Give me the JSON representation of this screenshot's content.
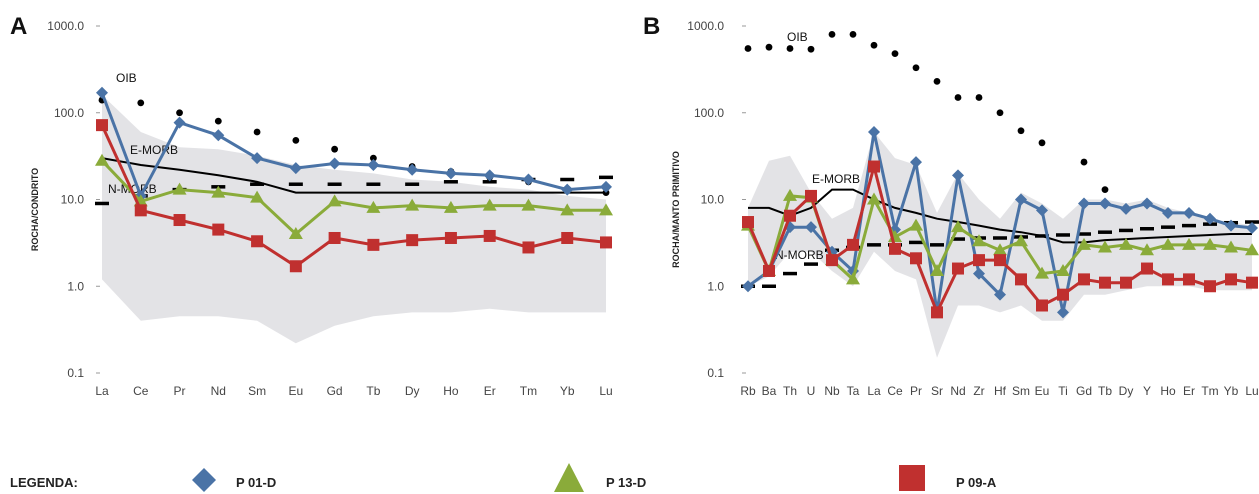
{
  "legend": {
    "title": "LEGENDA:",
    "entries": [
      {
        "label": "P 01-D",
        "color": "#4a73a6",
        "marker": "diamond"
      },
      {
        "label": "P 13-D",
        "color": "#8aab3a",
        "marker": "triangle"
      },
      {
        "label": "P 09-A",
        "color": "#c0302f",
        "marker": "square"
      }
    ]
  },
  "chart_data": [
    {
      "panel": "A",
      "type": "line",
      "ylabel": "ROCHA/CONDRITO",
      "yscale": "log",
      "ylim": [
        0.1,
        1000
      ],
      "yticks": [
        "1000.0",
        "100.0",
        "10.0",
        "1.0",
        "0.1"
      ],
      "categories": [
        "La",
        "Ce",
        "Pr",
        "Nd",
        "Sm",
        "Eu",
        "Gd",
        "Tb",
        "Dy",
        "Ho",
        "Er",
        "Tm",
        "Yb",
        "Lu"
      ],
      "series": [
        {
          "name": "P 01-D",
          "color": "#4a73a6",
          "marker": "diamond",
          "values": [
            170,
            11,
            77,
            55,
            30,
            23,
            26,
            25,
            22,
            20,
            19,
            17,
            13,
            14
          ]
        },
        {
          "name": "P 13-D",
          "color": "#8aab3a",
          "marker": "triangle",
          "values": [
            28,
            9.5,
            13,
            12,
            10.5,
            4,
            9.5,
            8,
            8.5,
            8,
            8.5,
            8.5,
            7.5,
            7.5
          ]
        },
        {
          "name": "P 09-A",
          "color": "#c0302f",
          "marker": "square",
          "values": [
            72,
            7.5,
            5.8,
            4.5,
            3.3,
            1.7,
            3.6,
            3,
            3.4,
            3.6,
            3.8,
            2.8,
            3.6,
            3.2
          ]
        }
      ],
      "reference": [
        {
          "name": "OIB",
          "style": "dots",
          "values": [
            140,
            130,
            100,
            80,
            60,
            48,
            38,
            30,
            24,
            21,
            18,
            16,
            13,
            12
          ]
        },
        {
          "name": "E-MORB",
          "style": "solid",
          "values": [
            30,
            25,
            22,
            19,
            16,
            12,
            12,
            12,
            12,
            12,
            12,
            12,
            12,
            12
          ]
        },
        {
          "name": "N-MORB",
          "style": "dashes",
          "values": [
            9,
            11,
            13,
            14,
            15,
            15,
            15,
            15,
            15,
            16,
            16,
            17,
            17,
            18
          ]
        }
      ],
      "envelope": {
        "upper": [
          160,
          60,
          40,
          38,
          32,
          25,
          22,
          20,
          17,
          16,
          14,
          13,
          11,
          10
        ],
        "lower": [
          1.2,
          0.4,
          0.45,
          0.45,
          0.4,
          0.22,
          0.35,
          0.45,
          0.5,
          0.5,
          0.55,
          0.5,
          0.5,
          0.5
        ]
      }
    },
    {
      "panel": "B",
      "type": "line",
      "ylabel": "ROCHA/MANTO PRIMITIVO",
      "yscale": "log",
      "ylim": [
        0.1,
        1000
      ],
      "yticks": [
        "1000.0",
        "100.0",
        "10.0",
        "1.0",
        "0.1"
      ],
      "categories": [
        "Rb",
        "Ba",
        "Th",
        "U",
        "Nb",
        "Ta",
        "La",
        "Ce",
        "Pr",
        "Sr",
        "Nd",
        "Zr",
        "Hf",
        "Sm",
        "Eu",
        "Ti",
        "Gd",
        "Tb",
        "Dy",
        "Y",
        "Ho",
        "Er",
        "Tm",
        "Yb",
        "Lu"
      ],
      "series": [
        {
          "name": "P 01-D",
          "color": "#4a73a6",
          "marker": "diamond",
          "values": [
            1,
            1.5,
            4.8,
            4.8,
            2.5,
            1.5,
            60,
            4.5,
            27,
            0.5,
            19,
            1.4,
            0.8,
            10,
            7.5,
            0.5,
            9,
            9,
            7.8,
            9,
            7,
            7,
            6,
            5,
            4.7
          ]
        },
        {
          "name": "P 13-D",
          "color": "#8aab3a",
          "marker": "triangle",
          "values": [
            5,
            1.5,
            11,
            10.5,
            2,
            1.2,
            10,
            3.7,
            5,
            1.5,
            4.8,
            3.3,
            2.6,
            3.3,
            1.4,
            1.5,
            3,
            2.8,
            3,
            2.6,
            3,
            3,
            3,
            2.8,
            2.6
          ]
        },
        {
          "name": "P 09-A",
          "color": "#c0302f",
          "marker": "square",
          "values": [
            5.5,
            1.5,
            6.5,
            11,
            2,
            3,
            24,
            2.7,
            2.1,
            0.5,
            1.6,
            2,
            2,
            1.2,
            0.6,
            0.8,
            1.2,
            1.1,
            1.1,
            1.6,
            1.2,
            1.2,
            1,
            1.2,
            1.1
          ]
        }
      ],
      "reference": [
        {
          "name": "OIB",
          "style": "dots",
          "values": [
            550,
            570,
            550,
            540,
            800,
            800,
            600,
            480,
            330,
            230,
            150,
            150,
            100,
            62,
            45,
            0,
            27,
            13,
            0,
            0,
            0,
            0,
            0,
            0,
            0
          ]
        },
        {
          "name": "E-MORB",
          "style": "solid",
          "values": [
            8,
            8,
            6.5,
            8,
            13,
            13,
            10,
            8,
            7,
            6,
            5.5,
            5,
            4.5,
            4.2,
            3.8,
            3.2,
            3.2,
            3.4,
            3.5,
            3.6,
            3.7,
            3.8,
            3.9,
            4,
            4
          ]
        },
        {
          "name": "N-MORB",
          "style": "dashes",
          "values": [
            1,
            1,
            1.4,
            1.8,
            2.6,
            2.8,
            3,
            3,
            3.2,
            3,
            3.5,
            3.6,
            3.6,
            3.7,
            3.8,
            3.9,
            4,
            4.2,
            4.4,
            4.6,
            4.8,
            5,
            5.2,
            5.4,
            5.5
          ]
        }
      ],
      "envelope": {
        "upper": [
          8,
          28,
          32,
          12,
          6,
          8,
          60,
          30,
          25,
          7,
          20,
          10,
          6,
          12,
          9,
          6,
          10,
          10,
          9,
          10,
          8,
          7,
          6,
          5.5,
          5
        ],
        "lower": [
          1,
          1.3,
          2.5,
          2.5,
          1.5,
          1,
          2.5,
          1.5,
          1.2,
          0.15,
          0.6,
          0.6,
          0.5,
          0.6,
          0.4,
          0.4,
          0.8,
          0.8,
          0.9,
          1,
          1,
          1,
          0.9,
          0.9,
          0.9
        ]
      }
    }
  ]
}
